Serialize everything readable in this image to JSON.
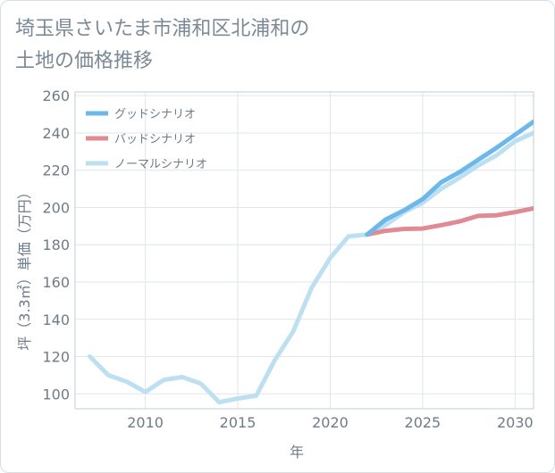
{
  "chart_data": {
    "type": "line",
    "title": "埼玉県さいたま市浦和区北浦和の\n土地の価格推移",
    "xlabel": "年",
    "ylabel": "坪（3.3㎡）単価（万円）",
    "xlim": [
      2006.2,
      2031
    ],
    "ylim": [
      92,
      262
    ],
    "xticks": [
      2010,
      2015,
      2020,
      2025,
      2030
    ],
    "yticks": [
      100,
      120,
      140,
      160,
      180,
      200,
      220,
      240,
      260
    ],
    "grid": true,
    "legend_position": "top-left",
    "series": [
      {
        "name": "グッドシナリオ",
        "color": "#6cb8ea",
        "x": [
          2022,
          2023,
          2024,
          2025,
          2026,
          2027,
          2028,
          2029,
          2030,
          2031
        ],
        "values": [
          185.5,
          193.5,
          198.5,
          204.5,
          213.5,
          219,
          225.5,
          232,
          239,
          246
        ]
      },
      {
        "name": "バッドシナリオ",
        "color": "#e08a93",
        "x": [
          2022,
          2023,
          2024,
          2025,
          2026,
          2027,
          2028,
          2029,
          2030,
          2031
        ],
        "values": [
          185.5,
          187.5,
          188.5,
          188.7,
          190.5,
          192.5,
          195.5,
          195.8,
          197.5,
          199.5
        ]
      },
      {
        "name": "ノーマルシナリオ",
        "color": "#bde0f0",
        "x": [
          2007,
          2008,
          2009,
          2010,
          2011,
          2012,
          2013,
          2014,
          2015,
          2016,
          2017,
          2018,
          2019,
          2020,
          2021,
          2022,
          2023,
          2024,
          2025,
          2026,
          2027,
          2028,
          2029,
          2030,
          2031
        ],
        "values": [
          120,
          110,
          106.5,
          101,
          107.5,
          109,
          105.5,
          95.5,
          97.5,
          99,
          118,
          133.5,
          157,
          173,
          184.5,
          185.5,
          190.5,
          197.5,
          202.5,
          210,
          216,
          222.5,
          228,
          235.5,
          240
        ]
      }
    ]
  }
}
